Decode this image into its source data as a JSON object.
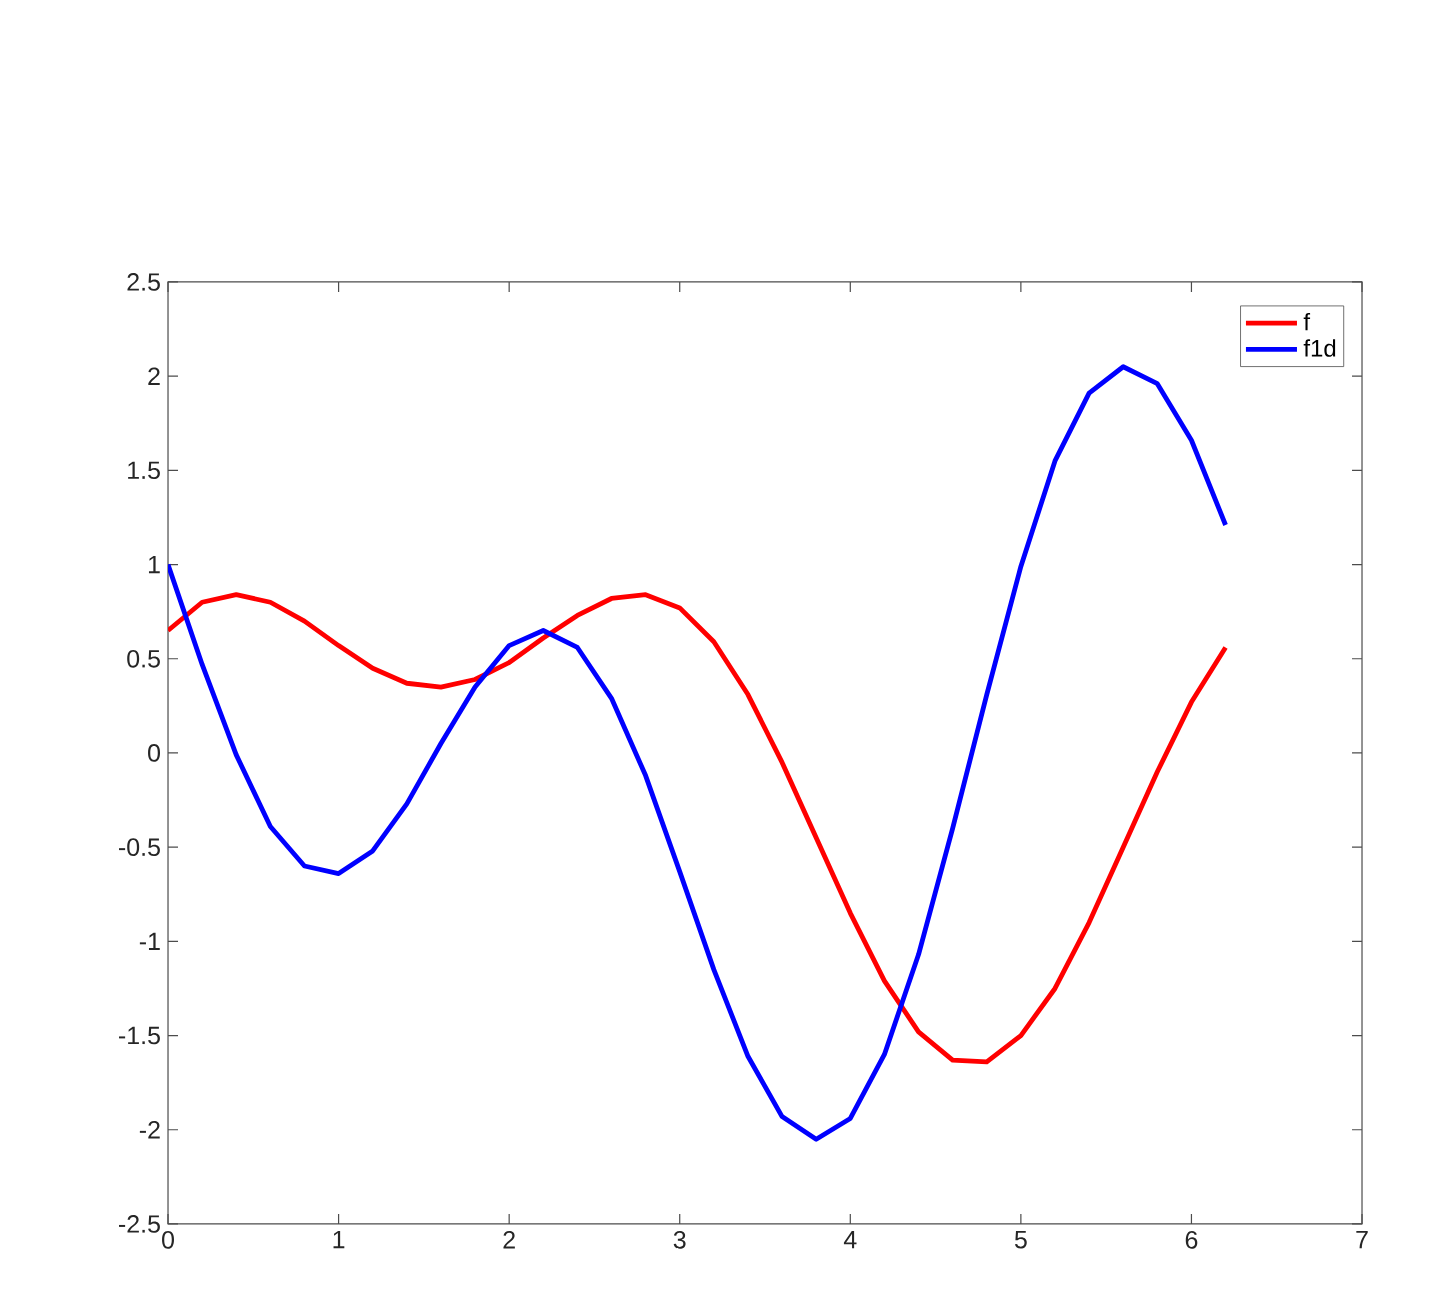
{
  "chart_data": {
    "type": "line",
    "x": [
      0,
      0.2,
      0.4,
      0.6,
      0.8,
      1.0,
      1.2,
      1.4,
      1.6,
      1.8,
      2.0,
      2.2,
      2.4,
      2.6,
      2.8,
      3.0,
      3.2,
      3.4,
      3.6,
      3.8,
      4.0,
      4.2,
      4.4,
      4.6,
      4.8,
      5.0,
      5.2,
      5.4,
      5.6,
      5.8,
      6.0,
      6.2
    ],
    "series": [
      {
        "name": "f",
        "color": "#ff0000",
        "values": [
          0.65,
          0.8,
          0.84,
          0.8,
          0.7,
          0.57,
          0.45,
          0.37,
          0.35,
          0.39,
          0.48,
          0.61,
          0.73,
          0.82,
          0.84,
          0.77,
          0.59,
          0.31,
          -0.05,
          -0.45,
          -0.85,
          -1.21,
          -1.48,
          -1.63,
          -1.64,
          -1.5,
          -1.25,
          -0.9,
          -0.5,
          -0.1,
          0.27,
          0.56
        ]
      },
      {
        "name": "f1d",
        "color": "#0000ff",
        "values": [
          1.0,
          0.47,
          -0.01,
          -0.39,
          -0.6,
          -0.64,
          -0.52,
          -0.27,
          0.05,
          0.35,
          0.57,
          0.65,
          0.56,
          0.29,
          -0.12,
          -0.63,
          -1.15,
          -1.61,
          -1.93,
          -2.05,
          -1.94,
          -1.6,
          -1.07,
          -0.4,
          0.31,
          0.99,
          1.55,
          1.91,
          2.05,
          1.96,
          1.66,
          1.21
        ]
      }
    ],
    "xlim": [
      0,
      7
    ],
    "ylim": [
      -2.5,
      2.5
    ],
    "xticks": [
      0,
      1,
      2,
      3,
      4,
      5,
      6,
      7
    ],
    "yticks": [
      -2.5,
      -2,
      -1.5,
      -1,
      -0.5,
      0,
      0.5,
      1,
      1.5,
      2,
      2.5
    ],
    "legend": "top right",
    "marker": "none",
    "line_style": "solid"
  }
}
